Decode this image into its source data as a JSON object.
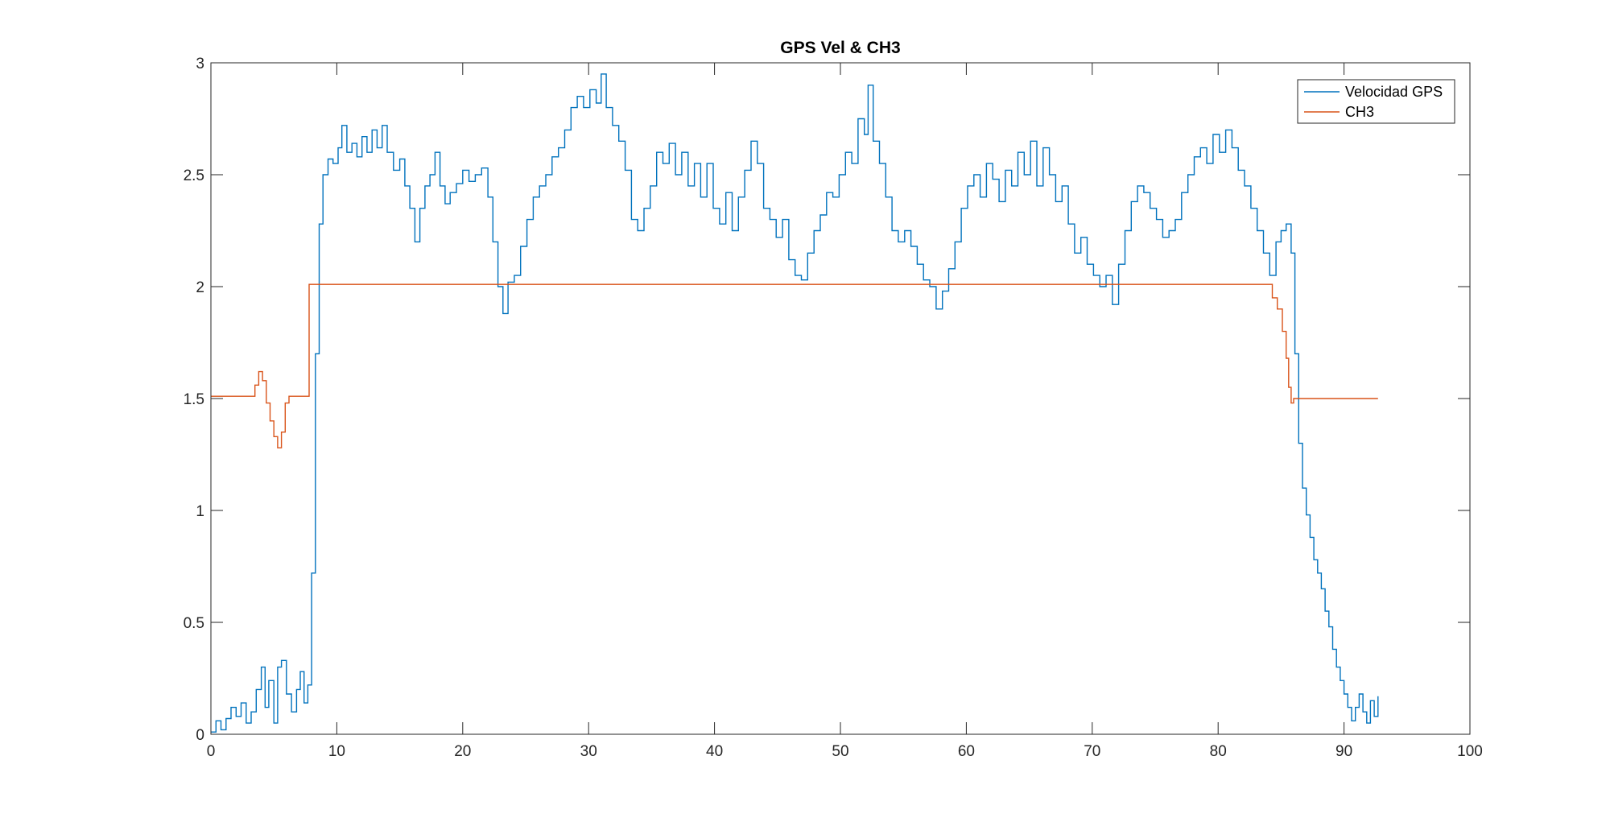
{
  "chart_data": {
    "type": "line",
    "title": "GPS Vel & CH3",
    "xlabel": "",
    "ylabel": "",
    "xlim": [
      0,
      100
    ],
    "ylim": [
      0,
      3
    ],
    "x_ticks": [
      0,
      10,
      20,
      30,
      40,
      50,
      60,
      70,
      80,
      90,
      100
    ],
    "y_ticks": [
      0,
      0.5,
      1,
      1.5,
      2,
      2.5,
      3
    ],
    "x_tick_labels": [
      "0",
      "10",
      "20",
      "30",
      "40",
      "50",
      "60",
      "70",
      "80",
      "90",
      "100"
    ],
    "y_tick_labels": [
      "0",
      "0.5",
      "1",
      "1.5",
      "2",
      "2.5",
      "3"
    ],
    "grid": false,
    "legend_position": "top-right",
    "step": true,
    "series": [
      {
        "name": "Velocidad GPS",
        "color": "#0072BD",
        "points": [
          [
            0,
            0.01
          ],
          [
            0.4,
            0.06
          ],
          [
            0.8,
            0.02
          ],
          [
            1.2,
            0.07
          ],
          [
            1.6,
            0.12
          ],
          [
            2.0,
            0.08
          ],
          [
            2.4,
            0.14
          ],
          [
            2.8,
            0.05
          ],
          [
            3.2,
            0.1
          ],
          [
            3.6,
            0.2
          ],
          [
            4.0,
            0.3
          ],
          [
            4.3,
            0.12
          ],
          [
            4.6,
            0.24
          ],
          [
            5.0,
            0.05
          ],
          [
            5.3,
            0.3
          ],
          [
            5.6,
            0.33
          ],
          [
            6.0,
            0.18
          ],
          [
            6.4,
            0.1
          ],
          [
            6.8,
            0.2
          ],
          [
            7.1,
            0.28
          ],
          [
            7.4,
            0.14
          ],
          [
            7.7,
            0.22
          ],
          [
            8.0,
            0.72
          ],
          [
            8.3,
            1.7
          ],
          [
            8.6,
            2.28
          ],
          [
            8.9,
            2.5
          ],
          [
            9.3,
            2.57
          ],
          [
            9.7,
            2.55
          ],
          [
            10.1,
            2.62
          ],
          [
            10.4,
            2.72
          ],
          [
            10.8,
            2.6
          ],
          [
            11.2,
            2.64
          ],
          [
            11.6,
            2.58
          ],
          [
            12.0,
            2.67
          ],
          [
            12.4,
            2.6
          ],
          [
            12.8,
            2.7
          ],
          [
            13.2,
            2.62
          ],
          [
            13.6,
            2.72
          ],
          [
            14.0,
            2.6
          ],
          [
            14.5,
            2.52
          ],
          [
            15.0,
            2.57
          ],
          [
            15.4,
            2.45
          ],
          [
            15.8,
            2.35
          ],
          [
            16.2,
            2.2
          ],
          [
            16.6,
            2.35
          ],
          [
            17.0,
            2.45
          ],
          [
            17.4,
            2.5
          ],
          [
            17.8,
            2.6
          ],
          [
            18.2,
            2.45
          ],
          [
            18.6,
            2.37
          ],
          [
            19.0,
            2.42
          ],
          [
            19.5,
            2.46
          ],
          [
            20.0,
            2.52
          ],
          [
            20.5,
            2.47
          ],
          [
            21.0,
            2.5
          ],
          [
            21.5,
            2.53
          ],
          [
            22.0,
            2.4
          ],
          [
            22.4,
            2.2
          ],
          [
            22.8,
            2.0
          ],
          [
            23.2,
            1.88
          ],
          [
            23.6,
            2.02
          ],
          [
            24.1,
            2.05
          ],
          [
            24.6,
            2.18
          ],
          [
            25.1,
            2.3
          ],
          [
            25.6,
            2.4
          ],
          [
            26.1,
            2.45
          ],
          [
            26.6,
            2.5
          ],
          [
            27.1,
            2.58
          ],
          [
            27.6,
            2.62
          ],
          [
            28.1,
            2.7
          ],
          [
            28.6,
            2.8
          ],
          [
            29.1,
            2.85
          ],
          [
            29.6,
            2.8
          ],
          [
            30.1,
            2.88
          ],
          [
            30.6,
            2.82
          ],
          [
            31.0,
            2.95
          ],
          [
            31.4,
            2.8
          ],
          [
            31.9,
            2.72
          ],
          [
            32.4,
            2.65
          ],
          [
            32.9,
            2.52
          ],
          [
            33.4,
            2.3
          ],
          [
            33.9,
            2.25
          ],
          [
            34.4,
            2.35
          ],
          [
            34.9,
            2.45
          ],
          [
            35.4,
            2.6
          ],
          [
            35.9,
            2.55
          ],
          [
            36.4,
            2.64
          ],
          [
            36.9,
            2.5
          ],
          [
            37.4,
            2.6
          ],
          [
            37.9,
            2.45
          ],
          [
            38.4,
            2.55
          ],
          [
            38.9,
            2.4
          ],
          [
            39.4,
            2.55
          ],
          [
            39.9,
            2.35
          ],
          [
            40.4,
            2.28
          ],
          [
            40.9,
            2.42
          ],
          [
            41.4,
            2.25
          ],
          [
            41.9,
            2.4
          ],
          [
            42.4,
            2.52
          ],
          [
            42.9,
            2.65
          ],
          [
            43.4,
            2.55
          ],
          [
            43.9,
            2.35
          ],
          [
            44.4,
            2.3
          ],
          [
            44.9,
            2.22
          ],
          [
            45.4,
            2.3
          ],
          [
            45.9,
            2.12
          ],
          [
            46.4,
            2.05
          ],
          [
            46.9,
            2.03
          ],
          [
            47.4,
            2.15
          ],
          [
            47.9,
            2.25
          ],
          [
            48.4,
            2.32
          ],
          [
            48.9,
            2.42
          ],
          [
            49.4,
            2.4
          ],
          [
            49.9,
            2.5
          ],
          [
            50.4,
            2.6
          ],
          [
            50.9,
            2.55
          ],
          [
            51.4,
            2.75
          ],
          [
            51.9,
            2.68
          ],
          [
            52.2,
            2.9
          ],
          [
            52.6,
            2.65
          ],
          [
            53.1,
            2.55
          ],
          [
            53.6,
            2.4
          ],
          [
            54.1,
            2.25
          ],
          [
            54.6,
            2.2
          ],
          [
            55.1,
            2.25
          ],
          [
            55.6,
            2.18
          ],
          [
            56.1,
            2.1
          ],
          [
            56.6,
            2.03
          ],
          [
            57.1,
            2.0
          ],
          [
            57.6,
            1.9
          ],
          [
            58.1,
            1.98
          ],
          [
            58.6,
            2.08
          ],
          [
            59.1,
            2.2
          ],
          [
            59.6,
            2.35
          ],
          [
            60.1,
            2.45
          ],
          [
            60.6,
            2.5
          ],
          [
            61.1,
            2.4
          ],
          [
            61.6,
            2.55
          ],
          [
            62.1,
            2.48
          ],
          [
            62.6,
            2.38
          ],
          [
            63.1,
            2.52
          ],
          [
            63.6,
            2.45
          ],
          [
            64.1,
            2.6
          ],
          [
            64.6,
            2.5
          ],
          [
            65.1,
            2.65
          ],
          [
            65.6,
            2.45
          ],
          [
            66.1,
            2.62
          ],
          [
            66.6,
            2.5
          ],
          [
            67.1,
            2.38
          ],
          [
            67.6,
            2.45
          ],
          [
            68.1,
            2.28
          ],
          [
            68.6,
            2.15
          ],
          [
            69.1,
            2.22
          ],
          [
            69.6,
            2.1
          ],
          [
            70.1,
            2.05
          ],
          [
            70.6,
            2.0
          ],
          [
            71.1,
            2.05
          ],
          [
            71.6,
            1.92
          ],
          [
            72.1,
            2.1
          ],
          [
            72.6,
            2.25
          ],
          [
            73.1,
            2.38
          ],
          [
            73.6,
            2.45
          ],
          [
            74.1,
            2.42
          ],
          [
            74.6,
            2.35
          ],
          [
            75.1,
            2.3
          ],
          [
            75.6,
            2.22
          ],
          [
            76.1,
            2.25
          ],
          [
            76.6,
            2.3
          ],
          [
            77.1,
            2.42
          ],
          [
            77.6,
            2.5
          ],
          [
            78.1,
            2.58
          ],
          [
            78.6,
            2.62
          ],
          [
            79.1,
            2.55
          ],
          [
            79.6,
            2.68
          ],
          [
            80.1,
            2.6
          ],
          [
            80.6,
            2.7
          ],
          [
            81.1,
            2.62
          ],
          [
            81.6,
            2.52
          ],
          [
            82.1,
            2.45
          ],
          [
            82.6,
            2.35
          ],
          [
            83.1,
            2.25
          ],
          [
            83.6,
            2.15
          ],
          [
            84.1,
            2.05
          ],
          [
            84.6,
            2.2
          ],
          [
            85.0,
            2.25
          ],
          [
            85.4,
            2.28
          ],
          [
            85.8,
            2.15
          ],
          [
            86.1,
            1.7
          ],
          [
            86.4,
            1.3
          ],
          [
            86.7,
            1.1
          ],
          [
            87.0,
            0.98
          ],
          [
            87.3,
            0.88
          ],
          [
            87.6,
            0.78
          ],
          [
            87.9,
            0.72
          ],
          [
            88.2,
            0.65
          ],
          [
            88.5,
            0.55
          ],
          [
            88.8,
            0.48
          ],
          [
            89.1,
            0.38
          ],
          [
            89.4,
            0.3
          ],
          [
            89.7,
            0.24
          ],
          [
            90.0,
            0.18
          ],
          [
            90.3,
            0.12
          ],
          [
            90.6,
            0.06
          ],
          [
            90.9,
            0.12
          ],
          [
            91.2,
            0.18
          ],
          [
            91.5,
            0.1
          ],
          [
            91.8,
            0.05
          ],
          [
            92.1,
            0.15
          ],
          [
            92.4,
            0.08
          ],
          [
            92.7,
            0.17
          ]
        ]
      },
      {
        "name": "CH3",
        "color": "#D95319",
        "points": [
          [
            0,
            1.51
          ],
          [
            3.2,
            1.51
          ],
          [
            3.5,
            1.56
          ],
          [
            3.8,
            1.62
          ],
          [
            4.1,
            1.58
          ],
          [
            4.4,
            1.48
          ],
          [
            4.7,
            1.4
          ],
          [
            5.0,
            1.33
          ],
          [
            5.3,
            1.28
          ],
          [
            5.6,
            1.35
          ],
          [
            5.9,
            1.48
          ],
          [
            6.2,
            1.51
          ],
          [
            7.7,
            1.51
          ],
          [
            7.8,
            2.01
          ],
          [
            83.9,
            2.01
          ],
          [
            84.3,
            1.95
          ],
          [
            84.7,
            1.9
          ],
          [
            85.1,
            1.8
          ],
          [
            85.4,
            1.68
          ],
          [
            85.6,
            1.55
          ],
          [
            85.8,
            1.48
          ],
          [
            86.0,
            1.5
          ],
          [
            92.7,
            1.5
          ]
        ]
      }
    ]
  }
}
